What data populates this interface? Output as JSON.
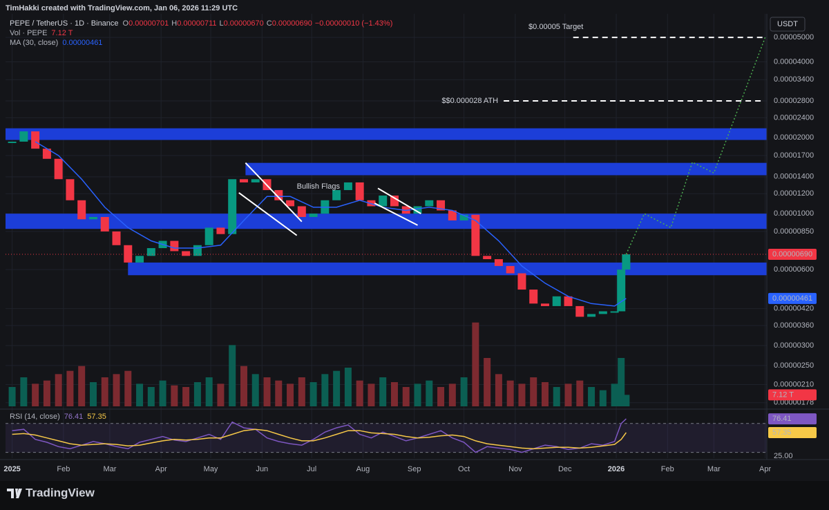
{
  "header": {
    "credit": "TimHakki created with TradingView.com, Jan 06, 2026 11:29 UTC",
    "symbol": "PEPE / TetherUS · 1D · Binance",
    "ohlc": [
      {
        "label": "O",
        "value": "0.00000701"
      },
      {
        "label": "H",
        "value": "0.00000711"
      },
      {
        "label": "L",
        "value": "0.00000670"
      },
      {
        "label": "C",
        "value": "0.00000690"
      }
    ],
    "change": "−0.00000010 (−1.43%)",
    "currency": "USDT"
  },
  "footer": {
    "brand": "TradingView"
  },
  "chart_data": [
    {
      "type": "candle-close",
      "yscale": "log",
      "grid": true,
      "xlim": [
        -4,
        456
      ],
      "ylim": [
        1.7e-06,
        6.2e-05
      ],
      "xticks": [
        {
          "value": 0,
          "label": "2025"
        },
        {
          "value": 31,
          "label": "Feb"
        },
        {
          "value": 59,
          "label": "Mar"
        },
        {
          "value": 90,
          "label": "Apr"
        },
        {
          "value": 120,
          "label": "May"
        },
        {
          "value": 151,
          "label": "Jun"
        },
        {
          "value": 181,
          "label": "Jul"
        },
        {
          "value": 212,
          "label": "Aug"
        },
        {
          "value": 243,
          "label": "Sep"
        },
        {
          "value": 273,
          "label": "Oct"
        },
        {
          "value": 304,
          "label": "Nov"
        },
        {
          "value": 334,
          "label": "Dec"
        },
        {
          "value": 365,
          "label": "2026"
        },
        {
          "value": 396,
          "label": "Feb"
        },
        {
          "value": 424,
          "label": "Mar"
        },
        {
          "value": 455,
          "label": "Apr"
        }
      ],
      "yticks": [
        {
          "value": 5e-05,
          "label": "0.00005000"
        },
        {
          "value": 4e-05,
          "label": "0.00004000"
        },
        {
          "value": 3.4e-05,
          "label": "0.00003400"
        },
        {
          "value": 2.8e-05,
          "label": "0.00002800"
        },
        {
          "value": 2.4e-05,
          "label": "0.00002400"
        },
        {
          "value": 2e-05,
          "label": "0.00002000"
        },
        {
          "value": 1.7e-05,
          "label": "0.00001700"
        },
        {
          "value": 1.4e-05,
          "label": "0.00001400"
        },
        {
          "value": 1.2e-05,
          "label": "0.00001200"
        },
        {
          "value": 1e-05,
          "label": "0.00001000"
        },
        {
          "value": 8.5e-06,
          "label": "0.00000850"
        },
        {
          "value": 6e-06,
          "label": "0.00000600"
        },
        {
          "value": 4.2e-06,
          "label": "0.00000420"
        },
        {
          "value": 3.6e-06,
          "label": "0.00000360"
        },
        {
          "value": 3e-06,
          "label": "0.00000300"
        },
        {
          "value": 2.5e-06,
          "label": "0.00000250"
        },
        {
          "value": 2.1e-06,
          "label": "0.00000210"
        },
        {
          "value": 1.78e-06,
          "label": "0.00000178"
        }
      ],
      "series": [
        {
          "up_color": "#089981",
          "down_color": "#f23645",
          "tag_color": "#f23645",
          "last_label": "0.00000690",
          "x": [
            0,
            7,
            14,
            21,
            28,
            35,
            42,
            49,
            56,
            63,
            70,
            77,
            84,
            91,
            98,
            105,
            112,
            119,
            126,
            133,
            140,
            147,
            154,
            161,
            168,
            175,
            182,
            189,
            196,
            203,
            210,
            217,
            224,
            231,
            238,
            245,
            252,
            259,
            266,
            273,
            280,
            287,
            294,
            301,
            308,
            315,
            322,
            329,
            336,
            343,
            350,
            357,
            364,
            368,
            371
          ],
          "values": [
            1.93e-05,
            2.12e-05,
            1.81e-05,
            1.65e-05,
            1.37e-05,
            1.13e-05,
            9.5e-06,
            9.7e-06,
            8.5e-06,
            7.5e-06,
            6.4e-06,
            6.8e-06,
            7.3e-06,
            7.8e-06,
            7.1e-06,
            6.8e-06,
            7.5e-06,
            8.8e-06,
            8.3e-06,
            1.37e-05,
            1.33e-05,
            1.37e-05,
            1.24e-05,
            1.13e-05,
            1.07e-05,
            9.7e-06,
            1e-05,
            1.13e-05,
            1.24e-05,
            1.33e-05,
            1.13e-05,
            1.07e-05,
            1.18e-05,
            1.07e-05,
            1e-05,
            1.07e-05,
            1.13e-05,
            1.03e-05,
            9.4e-06,
            9.9e-06,
            6.8e-06,
            6.6e-06,
            6.2e-06,
            5.8e-06,
            5e-06,
            4.4e-06,
            4.3e-06,
            4.7e-06,
            4.3e-06,
            3.9e-06,
            4e-06,
            4.1e-06,
            4.1e-06,
            6e-06,
            6.9e-06
          ]
        },
        {
          "name": "MA (30, close)",
          "color": "#2962ff",
          "last_label": "0.00000461",
          "x": [
            14,
            28,
            42,
            56,
            70,
            84,
            98,
            112,
            126,
            140,
            154,
            168,
            182,
            196,
            210,
            224,
            238,
            252,
            266,
            280,
            294,
            308,
            322,
            336,
            350,
            364,
            371
          ],
          "values": [
            1.93e-05,
            1.7e-05,
            1.37e-05,
            1.06e-05,
            8.8e-06,
            7.8e-06,
            7.3e-06,
            7.3e-06,
            7.5e-06,
            9.4e-06,
            1.17e-05,
            1.17e-05,
            1.06e-05,
            1.06e-05,
            1.13e-05,
            1.06e-05,
            1.03e-05,
            1.06e-05,
            1.03e-05,
            9.4e-06,
            7.8e-06,
            6.2e-06,
            5.3e-06,
            4.7e-06,
            4.4e-06,
            4.3e-06,
            4.61e-06
          ]
        },
        {
          "color": "#4caf50",
          "dotted": true,
          "x": [
            371,
            382,
            398,
            411,
            424,
            455
          ],
          "values": [
            6.9e-06,
            1e-05,
            8.8e-06,
            1.6e-05,
            1.45e-05,
            5e-05
          ]
        }
      ],
      "zone_color": "#1c3ed8",
      "zones": [
        {
          "start": -4,
          "range": [
            1.96e-05,
            2.18e-05
          ]
        },
        {
          "start": 141,
          "range": [
            1.42e-05,
            1.59e-05
          ]
        },
        {
          "start": -4,
          "range": [
            8.7e-06,
            1e-05
          ]
        },
        {
          "start": 70,
          "range": [
            5.7e-06,
            6.4e-06
          ]
        }
      ],
      "trendlines": [
        {
          "x": [
            141,
            175
          ],
          "values": [
            1.59e-05,
            9.3e-06
          ]
        },
        {
          "x": [
            137,
            172
          ],
          "values": [
            1.21e-05,
            8.2e-06
          ]
        },
        {
          "x": [
            221,
            247
          ],
          "values": [
            1.26e-05,
            1e-05
          ]
        },
        {
          "x": [
            219,
            245
          ],
          "values": [
            1.1e-05,
            9e-06
          ]
        }
      ],
      "levels": [
        {
          "text": "$0.00005 Target",
          "value": 5e-05,
          "start": 339,
          "label_position": "above"
        },
        {
          "text": "$$0.000028 ATH",
          "value": 2.8e-05,
          "start": 297,
          "label_position": "left"
        }
      ],
      "notes": [
        {
          "text": "Bullish Flags",
          "x": 172,
          "value": 1.28e-05
        }
      ]
    },
    {
      "type": "bar",
      "ylim": [
        0,
        60
      ],
      "series": [
        {
          "name": "Vol · PEPE",
          "last_label": "7.12 T",
          "up_color": "#0b5f53",
          "down_color": "#7d2a30",
          "tag_color": "#f23645",
          "x": [
            0,
            7,
            14,
            21,
            28,
            35,
            42,
            49,
            56,
            63,
            70,
            77,
            84,
            91,
            98,
            105,
            112,
            119,
            126,
            133,
            140,
            147,
            154,
            161,
            168,
            175,
            182,
            189,
            196,
            203,
            210,
            217,
            224,
            231,
            238,
            245,
            252,
            259,
            266,
            273,
            280,
            287,
            294,
            301,
            308,
            315,
            322,
            329,
            336,
            343,
            350,
            357,
            364,
            368,
            371
          ],
          "values": [
            12,
            18,
            14,
            16,
            20,
            22,
            25,
            15,
            18,
            20,
            22,
            14,
            12,
            16,
            13,
            12,
            15,
            18,
            14,
            38,
            25,
            20,
            18,
            16,
            14,
            18,
            15,
            20,
            22,
            24,
            16,
            14,
            18,
            15,
            12,
            14,
            16,
            12,
            14,
            18,
            52,
            30,
            20,
            16,
            14,
            18,
            15,
            12,
            14,
            16,
            12,
            10,
            14,
            30,
            7.12
          ]
        }
      ]
    },
    {
      "type": "line",
      "ylim": [
        22,
        87
      ],
      "yticks": [
        {
          "value": 25,
          "label": "25.00"
        }
      ],
      "bands": [
        30,
        70
      ],
      "band_color": "rgba(126,87,194,0.12)",
      "series": [
        {
          "name": "RSI (14, close)",
          "color": "#7e57c2",
          "x": [
            0,
            7,
            14,
            21,
            28,
            35,
            42,
            49,
            56,
            63,
            70,
            77,
            84,
            91,
            98,
            105,
            112,
            119,
            126,
            133,
            140,
            147,
            154,
            161,
            168,
            175,
            182,
            189,
            196,
            203,
            210,
            217,
            224,
            231,
            238,
            245,
            252,
            259,
            266,
            273,
            280,
            287,
            294,
            301,
            308,
            315,
            322,
            329,
            336,
            343,
            350,
            357,
            364,
            368,
            371
          ],
          "values": [
            60,
            62,
            48,
            44,
            38,
            35,
            40,
            45,
            42,
            38,
            35,
            44,
            48,
            52,
            47,
            45,
            50,
            55,
            48,
            72,
            64,
            62,
            50,
            45,
            42,
            40,
            48,
            58,
            64,
            68,
            55,
            50,
            58,
            52,
            46,
            50,
            55,
            60,
            50,
            44,
            30,
            38,
            36,
            34,
            30,
            35,
            40,
            38,
            34,
            36,
            42,
            40,
            45,
            70,
            76.41
          ]
        },
        {
          "color": "#f7c948",
          "text_color": "#131722",
          "x": [
            0,
            7,
            14,
            21,
            28,
            35,
            42,
            49,
            56,
            63,
            70,
            77,
            84,
            91,
            98,
            105,
            112,
            119,
            126,
            133,
            140,
            147,
            154,
            161,
            168,
            175,
            182,
            189,
            196,
            203,
            210,
            217,
            224,
            231,
            238,
            245,
            252,
            259,
            266,
            273,
            280,
            287,
            294,
            301,
            308,
            315,
            322,
            329,
            336,
            343,
            350,
            357,
            364,
            368,
            371
          ],
          "values": [
            55,
            56,
            54,
            50,
            46,
            42,
            40,
            41,
            42,
            41,
            39,
            40,
            43,
            46,
            48,
            47,
            48,
            50,
            50,
            55,
            60,
            62,
            60,
            55,
            50,
            46,
            46,
            50,
            55,
            60,
            60,
            57,
            56,
            55,
            52,
            50,
            51,
            53,
            54,
            52,
            46,
            42,
            40,
            38,
            36,
            35,
            36,
            37,
            37,
            36,
            37,
            39,
            41,
            48,
            57.35
          ]
        }
      ]
    }
  ]
}
